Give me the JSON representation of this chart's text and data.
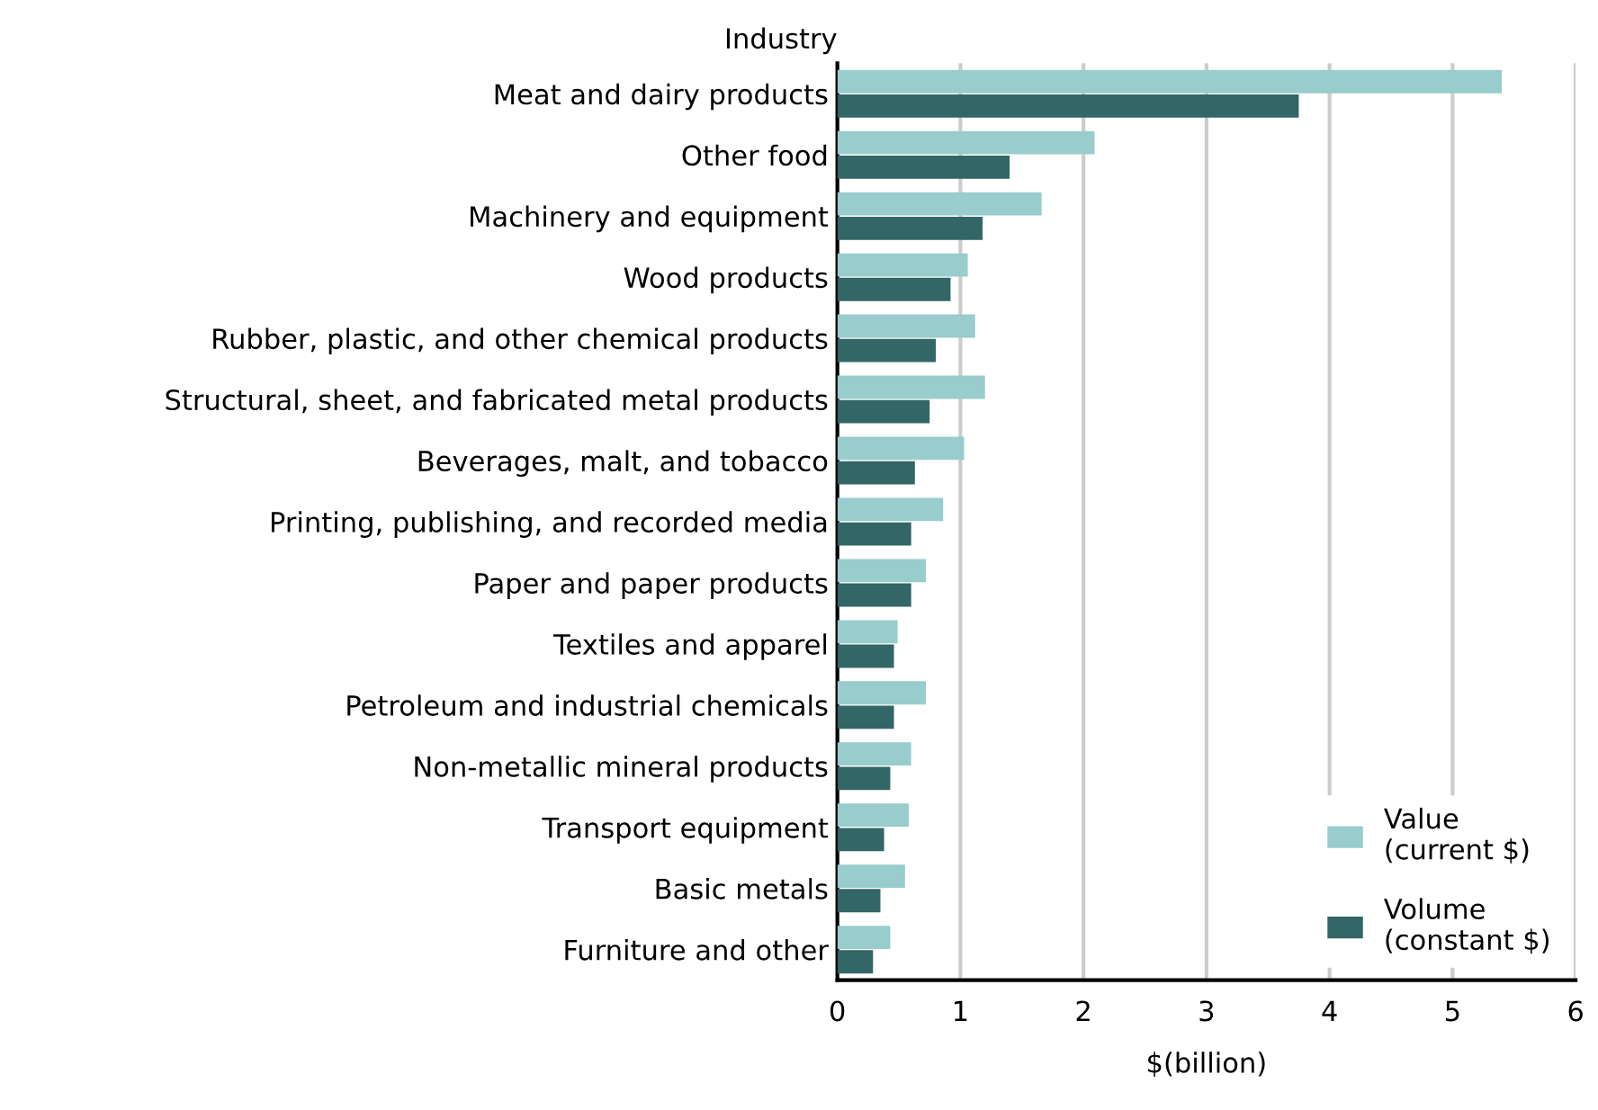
{
  "chart_data": {
    "type": "bar",
    "orientation": "horizontal",
    "ylabel": "Industry",
    "xlabel": "$(billion)",
    "categories": [
      "Meat and dairy products",
      "Other food",
      "Machinery and equipment",
      "Wood products",
      "Rubber, plastic, and other chemical products",
      "Structural, sheet, and fabricated metal products",
      "Beverages, malt, and tobacco",
      "Printing, publishing, and recorded media",
      "Paper and paper products",
      "Textiles and apparel",
      "Petroleum and industrial chemicals",
      "Non-metallic mineral products",
      "Transport equipment",
      "Basic metals",
      "Furniture and other"
    ],
    "series": [
      {
        "name": "Value\n(current $)",
        "color": "#99cccc",
        "values": [
          5.4,
          2.09,
          1.66,
          1.06,
          1.12,
          1.2,
          1.03,
          0.86,
          0.72,
          0.49,
          0.72,
          0.6,
          0.58,
          0.55,
          0.43
        ]
      },
      {
        "name": "Volume\n(constant $)",
        "color": "#336666",
        "values": [
          3.75,
          1.4,
          1.18,
          0.92,
          0.8,
          0.75,
          0.63,
          0.6,
          0.6,
          0.46,
          0.46,
          0.43,
          0.38,
          0.35,
          0.29
        ]
      }
    ],
    "xlim": [
      0,
      6
    ],
    "xticks": [
      0,
      1,
      2,
      3,
      4,
      5,
      6
    ],
    "grid": "x",
    "legend": "bottom right"
  }
}
